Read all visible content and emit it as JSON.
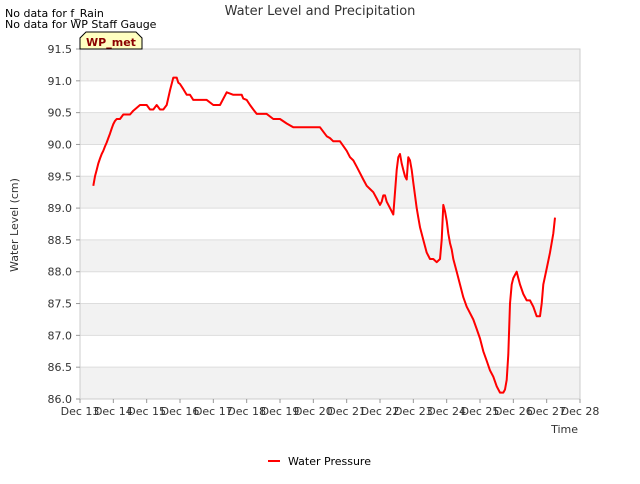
{
  "notes": [
    "No data for f_Rain",
    "No data for WP Staff Gauge"
  ],
  "badge": "WP_met",
  "chart_data": {
    "type": "line",
    "title": "Water Level and Precipitation",
    "xlabel": "Time",
    "ylabel": "Water Level (cm)",
    "ylim": [
      86.0,
      91.5
    ],
    "xlim": [
      13,
      28
    ],
    "yticks": [
      86.0,
      86.5,
      87.0,
      87.5,
      88.0,
      88.5,
      89.0,
      89.5,
      90.0,
      90.5,
      91.0,
      91.5
    ],
    "yticklabels": [
      "86.0",
      "86.5",
      "87.0",
      "87.5",
      "88.0",
      "88.5",
      "89.0",
      "89.5",
      "90.0",
      "90.5",
      "91.0",
      "91.5"
    ],
    "xticks": [
      13,
      14,
      15,
      16,
      17,
      18,
      19,
      20,
      21,
      22,
      23,
      24,
      25,
      26,
      27,
      28
    ],
    "xticklabels": [
      "Dec 13",
      "Dec 14",
      "Dec 15",
      "Dec 16",
      "Dec 17",
      "Dec 18",
      "Dec 19",
      "Dec 20",
      "Dec 21",
      "Dec 22",
      "Dec 23",
      "Dec 24",
      "Dec 25",
      "Dec 26",
      "Dec 27",
      "Dec 28"
    ],
    "grid": "horizontal bands",
    "legend_position": "bottom-center",
    "series": [
      {
        "name": "Water Pressure",
        "color": "#ff0000",
        "x": [
          13.4,
          13.45,
          13.5,
          13.55,
          13.6,
          13.65,
          13.7,
          13.75,
          13.8,
          13.85,
          13.9,
          13.95,
          14.0,
          14.05,
          14.1,
          14.15,
          14.2,
          14.3,
          14.4,
          14.5,
          14.6,
          14.8,
          15.0,
          15.1,
          15.2,
          15.3,
          15.4,
          15.5,
          15.6,
          15.7,
          15.8,
          15.85,
          15.9,
          15.95,
          16.0,
          16.1,
          16.2,
          16.3,
          16.4,
          16.5,
          16.6,
          16.7,
          16.8,
          17.0,
          17.2,
          17.4,
          17.6,
          17.8,
          17.85,
          17.9,
          18.0,
          18.1,
          18.2,
          18.3,
          18.4,
          18.5,
          18.6,
          18.8,
          19.0,
          19.2,
          19.4,
          19.6,
          19.8,
          20.0,
          20.2,
          20.3,
          20.4,
          20.5,
          20.6,
          20.8,
          21.0,
          21.1,
          21.2,
          21.3,
          21.4,
          21.5,
          21.6,
          21.7,
          21.8,
          21.9,
          22.0,
          22.05,
          22.1,
          22.15,
          22.2,
          22.3,
          22.4,
          22.5,
          22.55,
          22.6,
          22.65,
          22.7,
          22.75,
          22.8,
          22.85,
          22.9,
          22.95,
          23.0,
          23.05,
          23.1,
          23.15,
          23.2,
          23.3,
          23.4,
          23.5,
          23.6,
          23.7,
          23.8,
          23.85,
          23.9,
          23.95,
          24.0,
          24.05,
          24.1,
          24.15,
          24.2,
          24.3,
          24.4,
          24.5,
          24.6,
          24.7,
          24.8,
          24.9,
          25.0,
          25.1,
          25.2,
          25.3,
          25.4,
          25.5,
          25.6,
          25.7,
          25.75,
          25.8,
          25.85,
          25.9,
          25.95,
          26.0,
          26.05,
          26.1,
          26.15,
          26.2,
          26.3,
          26.4,
          26.5,
          26.6,
          26.7,
          26.8,
          26.85,
          26.9,
          27.0,
          27.1,
          27.2,
          27.25
        ],
        "y": [
          89.35,
          89.5,
          89.6,
          89.7,
          89.78,
          89.85,
          89.9,
          89.97,
          90.03,
          90.1,
          90.17,
          90.25,
          90.32,
          90.37,
          90.4,
          90.4,
          90.4,
          90.47,
          90.47,
          90.47,
          90.53,
          90.62,
          90.62,
          90.55,
          90.55,
          90.62,
          90.55,
          90.55,
          90.62,
          90.85,
          91.05,
          91.05,
          91.05,
          90.97,
          90.95,
          90.87,
          90.78,
          90.78,
          90.7,
          90.7,
          90.7,
          90.7,
          90.7,
          90.62,
          90.62,
          90.82,
          90.78,
          90.78,
          90.78,
          90.72,
          90.7,
          90.62,
          90.55,
          90.48,
          90.48,
          90.48,
          90.48,
          90.4,
          90.4,
          90.33,
          90.27,
          90.27,
          90.27,
          90.27,
          90.27,
          90.2,
          90.13,
          90.1,
          90.05,
          90.05,
          89.9,
          89.8,
          89.75,
          89.65,
          89.55,
          89.45,
          89.35,
          89.3,
          89.25,
          89.15,
          89.05,
          89.1,
          89.2,
          89.2,
          89.1,
          89.0,
          88.9,
          89.6,
          89.8,
          89.85,
          89.7,
          89.6,
          89.5,
          89.45,
          89.8,
          89.75,
          89.6,
          89.4,
          89.2,
          89.0,
          88.85,
          88.7,
          88.5,
          88.3,
          88.2,
          88.2,
          88.15,
          88.2,
          88.5,
          89.05,
          88.95,
          88.8,
          88.6,
          88.45,
          88.35,
          88.2,
          88.0,
          87.8,
          87.6,
          87.45,
          87.35,
          87.25,
          87.1,
          86.95,
          86.75,
          86.6,
          86.45,
          86.35,
          86.2,
          86.1,
          86.1,
          86.15,
          86.3,
          86.7,
          87.5,
          87.8,
          87.9,
          87.95,
          88.0,
          87.9,
          87.8,
          87.65,
          87.55,
          87.55,
          87.45,
          87.3,
          87.3,
          87.5,
          87.8,
          88.05,
          88.3,
          88.6,
          88.85
        ]
      }
    ]
  }
}
